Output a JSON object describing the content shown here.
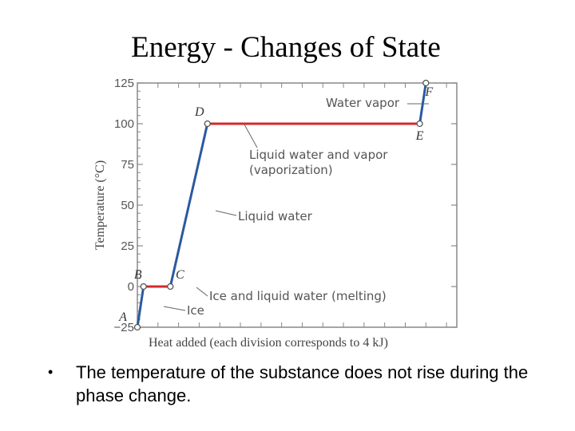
{
  "slide": {
    "title": "Energy - Changes of State",
    "bullet": "The temperature of the substance does not rise during the phase change."
  },
  "colors": {
    "rising_segment": "#2a5aa0",
    "flat_segment": "#d42a2a",
    "axis": "#888888",
    "text": "#555555"
  },
  "chart_data": {
    "type": "line",
    "title": "",
    "xlabel": "Heat added (each division corresponds to 4 kJ)",
    "ylabel": "Temperature (°C)",
    "ylim": [
      -25,
      125
    ],
    "yticks": [
      125,
      100,
      75,
      50,
      25,
      0,
      -25
    ],
    "xlim": [
      0,
      155
    ],
    "x_division_kj": 4,
    "points": [
      {
        "label": "A",
        "x": 0,
        "y": -25
      },
      {
        "label": "B",
        "x": 3,
        "y": 0
      },
      {
        "label": "C",
        "x": 16,
        "y": 0
      },
      {
        "label": "D",
        "x": 34,
        "y": 100
      },
      {
        "label": "E",
        "x": 137,
        "y": 100
      },
      {
        "label": "F",
        "x": 140,
        "y": 125
      }
    ],
    "segments": [
      {
        "from": "A",
        "to": "B",
        "phase": "Ice",
        "kind": "rising"
      },
      {
        "from": "B",
        "to": "C",
        "phase": "Ice and liquid water (melting)",
        "kind": "flat"
      },
      {
        "from": "C",
        "to": "D",
        "phase": "Liquid water",
        "kind": "rising"
      },
      {
        "from": "D",
        "to": "E",
        "phase": "Liquid water and vapor (vaporization)",
        "kind": "flat"
      },
      {
        "from": "E",
        "to": "F",
        "phase": "Water vapor",
        "kind": "rising"
      }
    ],
    "annotations": {
      "water_vapor": "Water vapor",
      "liquid_vapor_line1": "Liquid water and vapor",
      "liquid_vapor_line2": "(vaporization)",
      "liquid_water": "Liquid water",
      "melting": "Ice and liquid water (melting)",
      "ice": "Ice"
    }
  }
}
